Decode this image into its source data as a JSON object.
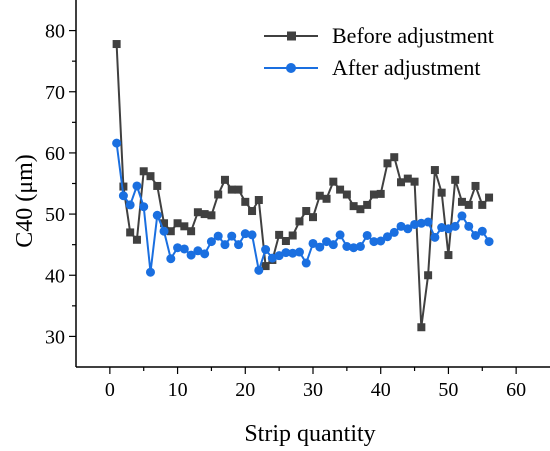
{
  "chart_data": {
    "type": "line",
    "xlabel": "Strip quantity",
    "ylabel": "C40 (μm)",
    "xlim": [
      -5,
      65
    ],
    "ylim": [
      25,
      85
    ],
    "xticks": [
      0,
      10,
      20,
      30,
      40,
      50,
      60
    ],
    "yticks": [
      30,
      40,
      50,
      60,
      70,
      80
    ],
    "legend_position": "top-right",
    "series": [
      {
        "name": "Before adjustment",
        "color": "#404040",
        "marker": "square",
        "x": [
          1,
          2,
          3,
          4,
          5,
          6,
          7,
          8,
          9,
          10,
          11,
          12,
          13,
          14,
          15,
          16,
          17,
          18,
          19,
          20,
          21,
          22,
          23,
          24,
          25,
          26,
          27,
          28,
          29,
          30,
          31,
          32,
          33,
          34,
          35,
          36,
          37,
          38,
          39,
          40,
          41,
          42,
          43,
          44,
          45,
          46,
          47,
          48,
          49,
          50,
          51,
          52,
          53,
          54,
          55,
          56
        ],
        "values": [
          77.8,
          54.5,
          47.0,
          45.8,
          57.0,
          56.2,
          54.6,
          48.5,
          47.2,
          48.5,
          48.0,
          47.2,
          50.3,
          50.0,
          49.8,
          53.2,
          55.6,
          54.0,
          54.0,
          52.0,
          50.5,
          52.3,
          41.5,
          42.5,
          46.6,
          45.6,
          46.5,
          48.8,
          50.5,
          49.5,
          53.0,
          52.5,
          55.3,
          54.0,
          53.2,
          51.3,
          50.8,
          51.5,
          53.2,
          53.3,
          58.3,
          59.3,
          55.2,
          55.8,
          55.3,
          31.5,
          40.0,
          57.2,
          53.5,
          43.3,
          55.6,
          52.0,
          51.5,
          54.6,
          51.5,
          52.7
        ]
      },
      {
        "name": "After adjustment",
        "color": "#1a6fe0",
        "marker": "circle",
        "x": [
          1,
          2,
          3,
          4,
          5,
          6,
          7,
          8,
          9,
          10,
          11,
          12,
          13,
          14,
          15,
          16,
          17,
          18,
          19,
          20,
          21,
          22,
          23,
          24,
          25,
          26,
          27,
          28,
          29,
          30,
          31,
          32,
          33,
          34,
          35,
          36,
          37,
          38,
          39,
          40,
          41,
          42,
          43,
          44,
          45,
          46,
          47,
          48,
          49,
          50,
          51,
          52,
          53,
          54,
          55,
          56
        ],
        "values": [
          61.6,
          53.0,
          51.5,
          54.6,
          51.2,
          40.5,
          49.8,
          47.2,
          42.7,
          44.5,
          44.3,
          43.3,
          44.0,
          43.5,
          45.5,
          46.4,
          45.0,
          46.4,
          45.0,
          46.8,
          46.6,
          40.8,
          44.2,
          42.8,
          43.2,
          43.7,
          43.6,
          43.8,
          42.0,
          45.2,
          44.6,
          45.5,
          45.0,
          46.6,
          44.7,
          44.5,
          44.7,
          46.5,
          45.5,
          45.6,
          46.3,
          47.0,
          48.0,
          47.6,
          48.3,
          48.5,
          48.7,
          46.2,
          47.8,
          47.6,
          48.0,
          49.7,
          48.0,
          46.5,
          47.2,
          45.5
        ]
      }
    ]
  }
}
